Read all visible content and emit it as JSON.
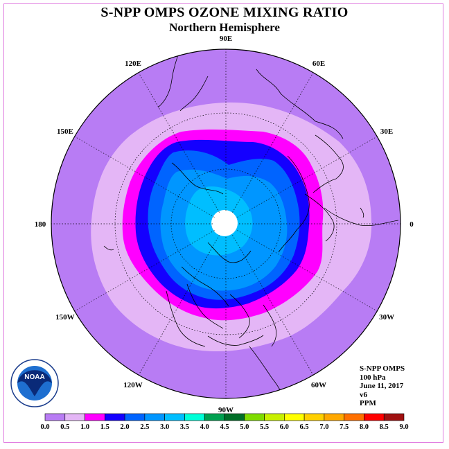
{
  "title": "S-NPP OMPS OZONE MIXING RATIO",
  "subtitle": "Northern Hemisphere",
  "info": {
    "instrument": "S-NPP OMPS",
    "level": "100 hPa",
    "date": "June 11, 2017",
    "version": "v6",
    "units": "PPM"
  },
  "logo": {
    "text": "NOAA"
  },
  "longitude_labels": [
    {
      "lon": 90,
      "text": "90E"
    },
    {
      "lon": 60,
      "text": "60E"
    },
    {
      "lon": 30,
      "text": "30E"
    },
    {
      "lon": 0,
      "text": "0"
    },
    {
      "lon": -30,
      "text": "30W"
    },
    {
      "lon": -60,
      "text": "60W"
    },
    {
      "lon": -90,
      "text": "90W"
    },
    {
      "lon": -120,
      "text": "120W"
    },
    {
      "lon": -150,
      "text": "150W"
    },
    {
      "lon": 180,
      "text": "180"
    },
    {
      "lon": 150,
      "text": "150E"
    },
    {
      "lon": 120,
      "text": "120E"
    }
  ],
  "colorbar": {
    "ticks": [
      "0.0",
      "0.5",
      "1.0",
      "1.5",
      "2.0",
      "2.5",
      "3.0",
      "3.5",
      "4.0",
      "4.5",
      "5.0",
      "5.5",
      "6.0",
      "6.5",
      "7.0",
      "7.5",
      "8.0",
      "8.5",
      "9.0"
    ],
    "colors": [
      "#b87cf4",
      "#e4b6f6",
      "#ff00ff",
      "#1400ff",
      "#0064ff",
      "#0096ff",
      "#00beff",
      "#00ffd8",
      "#00a050",
      "#006e28",
      "#7fdc00",
      "#c8f000",
      "#ffff00",
      "#ffd000",
      "#ffa800",
      "#ff7000",
      "#ff0000",
      "#a01010"
    ]
  }
}
